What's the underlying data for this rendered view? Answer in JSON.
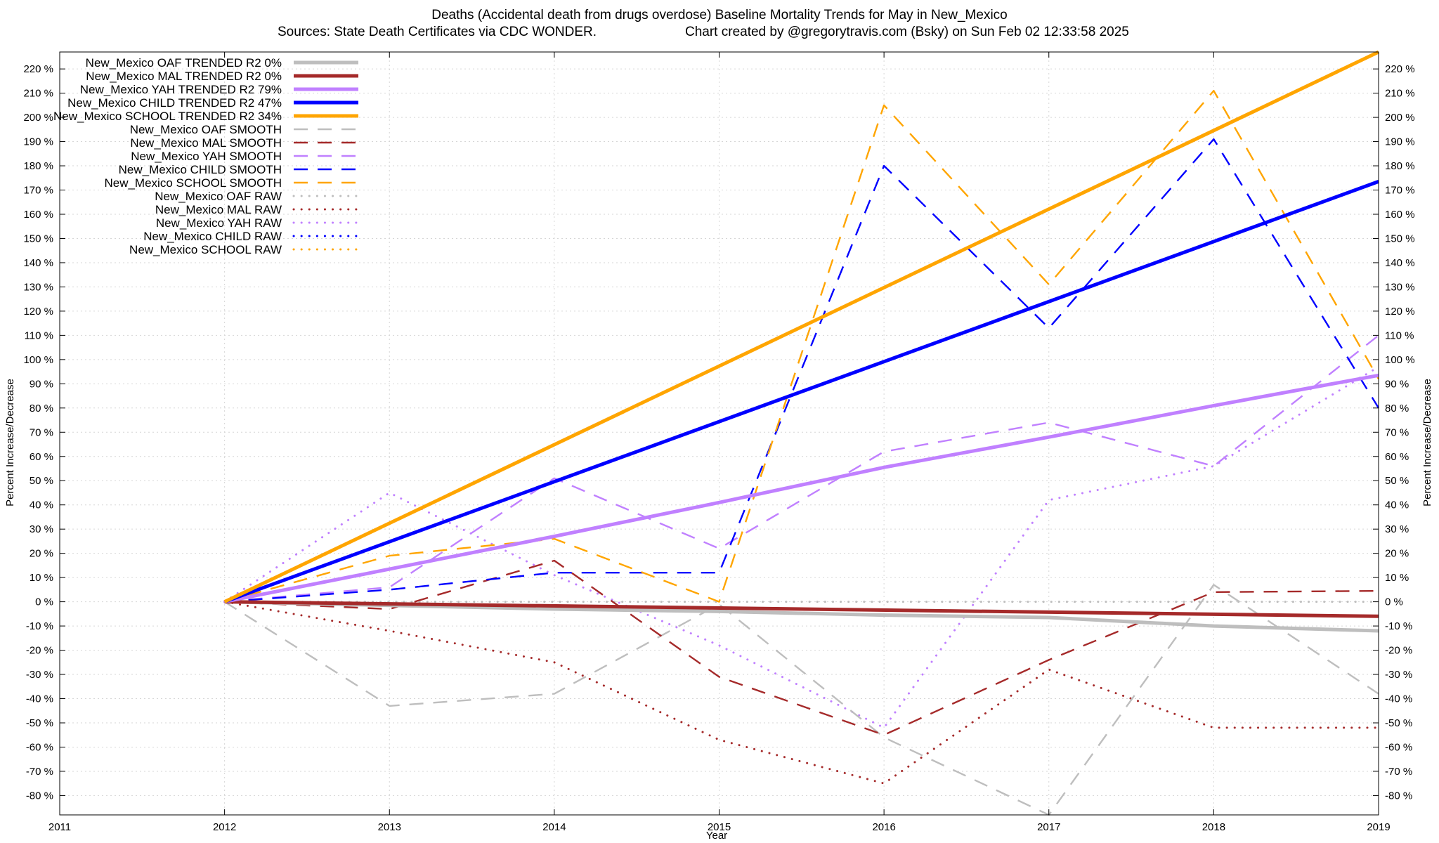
{
  "chart_data": {
    "type": "line",
    "title_line1": "Deaths (Accidental death from drugs overdose)  Baseline Mortality Trends for May in New_Mexico",
    "title_line2_left": "Sources: State Death Certificates via CDC WONDER.",
    "title_line2_right": "Chart created by @gregorytravis.com (Bsky) on Sun Feb 02 12:33:58 2025",
    "xlabel": "Year",
    "ylabel_left": "Percent Increase/Decrease",
    "ylabel_right": "Percent Increase/Decrease",
    "xlim": [
      2011,
      2019
    ],
    "ylim": [
      -88,
      227
    ],
    "x_ticks": [
      2011,
      2012,
      2013,
      2014,
      2015,
      2016,
      2017,
      2018,
      2019
    ],
    "y_ticks": [
      -80,
      -70,
      -60,
      -50,
      -40,
      -30,
      -20,
      -10,
      0,
      10,
      20,
      30,
      40,
      50,
      60,
      70,
      80,
      90,
      100,
      110,
      120,
      130,
      140,
      150,
      160,
      170,
      180,
      190,
      200,
      210,
      220
    ],
    "y_tick_suffix": " %",
    "grid": true,
    "legend_position": "top-left",
    "series": [
      {
        "name": "New_Mexico OAF TRENDED R2   0%",
        "style": "solid",
        "color": "#bebebe",
        "x": [
          2012,
          2013,
          2014,
          2015,
          2016,
          2017,
          2018,
          2019
        ],
        "values": [
          0,
          -1.5,
          -3,
          -4,
          -5.5,
          -6.5,
          -10,
          -12
        ]
      },
      {
        "name": "New_Mexico MAL TRENDED R2   0%",
        "style": "solid",
        "color": "#a52a2a",
        "x": [
          2012,
          2019
        ],
        "values": [
          0,
          -6
        ]
      },
      {
        "name": "New_Mexico YAH TRENDED R2  79%",
        "style": "solid",
        "color": "#c080ff",
        "x": [
          2012,
          2013,
          2014,
          2015,
          2016,
          2017,
          2018,
          2019
        ],
        "values": [
          0,
          13.5,
          27,
          41,
          55.5,
          68,
          81,
          93.5
        ]
      },
      {
        "name": "New_Mexico CHILD TRENDED R2  47%",
        "style": "solid",
        "color": "#0000ff",
        "x": [
          2012,
          2019
        ],
        "values": [
          0,
          173.5
        ]
      },
      {
        "name": "New_Mexico SCHOOL TRENDED R2  34%",
        "style": "solid",
        "color": "#ffa500",
        "x": [
          2012,
          2019
        ],
        "values": [
          0,
          227
        ]
      },
      {
        "name": "New_Mexico OAF SMOOTH",
        "style": "dashed",
        "color": "#bebebe",
        "x": [
          2012,
          2013,
          2014,
          2015,
          2016,
          2017,
          2018,
          2019
        ],
        "values": [
          0,
          -43,
          -38,
          -1,
          -56,
          -88,
          7,
          -38
        ]
      },
      {
        "name": "New_Mexico MAL SMOOTH",
        "style": "dashed",
        "color": "#a52a2a",
        "x": [
          2012,
          2013,
          2014,
          2015,
          2016,
          2017,
          2018,
          2019
        ],
        "values": [
          0,
          -3,
          17,
          -31,
          -55,
          -24,
          4,
          4.5
        ]
      },
      {
        "name": "New_Mexico YAH SMOOTH",
        "style": "dashed",
        "color": "#c080ff",
        "x": [
          2012,
          2013,
          2014,
          2015,
          2016,
          2017,
          2018,
          2019
        ],
        "values": [
          0,
          6,
          51,
          22,
          62,
          74,
          56,
          110
        ]
      },
      {
        "name": "New_Mexico CHILD SMOOTH",
        "style": "dashed",
        "color": "#0000ff",
        "x": [
          2012,
          2013,
          2014,
          2015,
          2016,
          2017,
          2018,
          2019
        ],
        "values": [
          0,
          5,
          12,
          12,
          180,
          113,
          191,
          80
        ]
      },
      {
        "name": "New_Mexico SCHOOL SMOOTH",
        "style": "dashed",
        "color": "#ffa500",
        "x": [
          2012,
          2013,
          2014,
          2015,
          2016,
          2017,
          2018,
          2019
        ],
        "values": [
          0,
          19,
          26,
          0,
          205,
          131,
          211,
          92
        ]
      },
      {
        "name": "New_Mexico OAF RAW",
        "style": "dotted",
        "color": "#bebebe",
        "x": [
          2012,
          2013,
          2014,
          2015,
          2016,
          2017,
          2018,
          2019
        ],
        "values": [
          0,
          0,
          0,
          0,
          0,
          0,
          0,
          0
        ]
      },
      {
        "name": "New_Mexico MAL RAW",
        "style": "dotted",
        "color": "#a52a2a",
        "x": [
          2012,
          2013,
          2014,
          2015,
          2016,
          2017,
          2018,
          2019
        ],
        "values": [
          0,
          -12,
          -25,
          -57,
          -75,
          -28,
          -52,
          -52
        ]
      },
      {
        "name": "New_Mexico YAH RAW",
        "style": "dotted",
        "color": "#c080ff",
        "x": [
          2012,
          2013,
          2014,
          2015,
          2016,
          2017,
          2018,
          2019
        ],
        "values": [
          0,
          45,
          11,
          -18,
          -52,
          42,
          56,
          97
        ]
      },
      {
        "name": "New_Mexico CHILD RAW",
        "style": "dotted",
        "color": "#0000ff",
        "x": [],
        "values": []
      },
      {
        "name": "New_Mexico SCHOOL RAW",
        "style": "dotted",
        "color": "#ffa500",
        "x": [],
        "values": []
      }
    ]
  }
}
